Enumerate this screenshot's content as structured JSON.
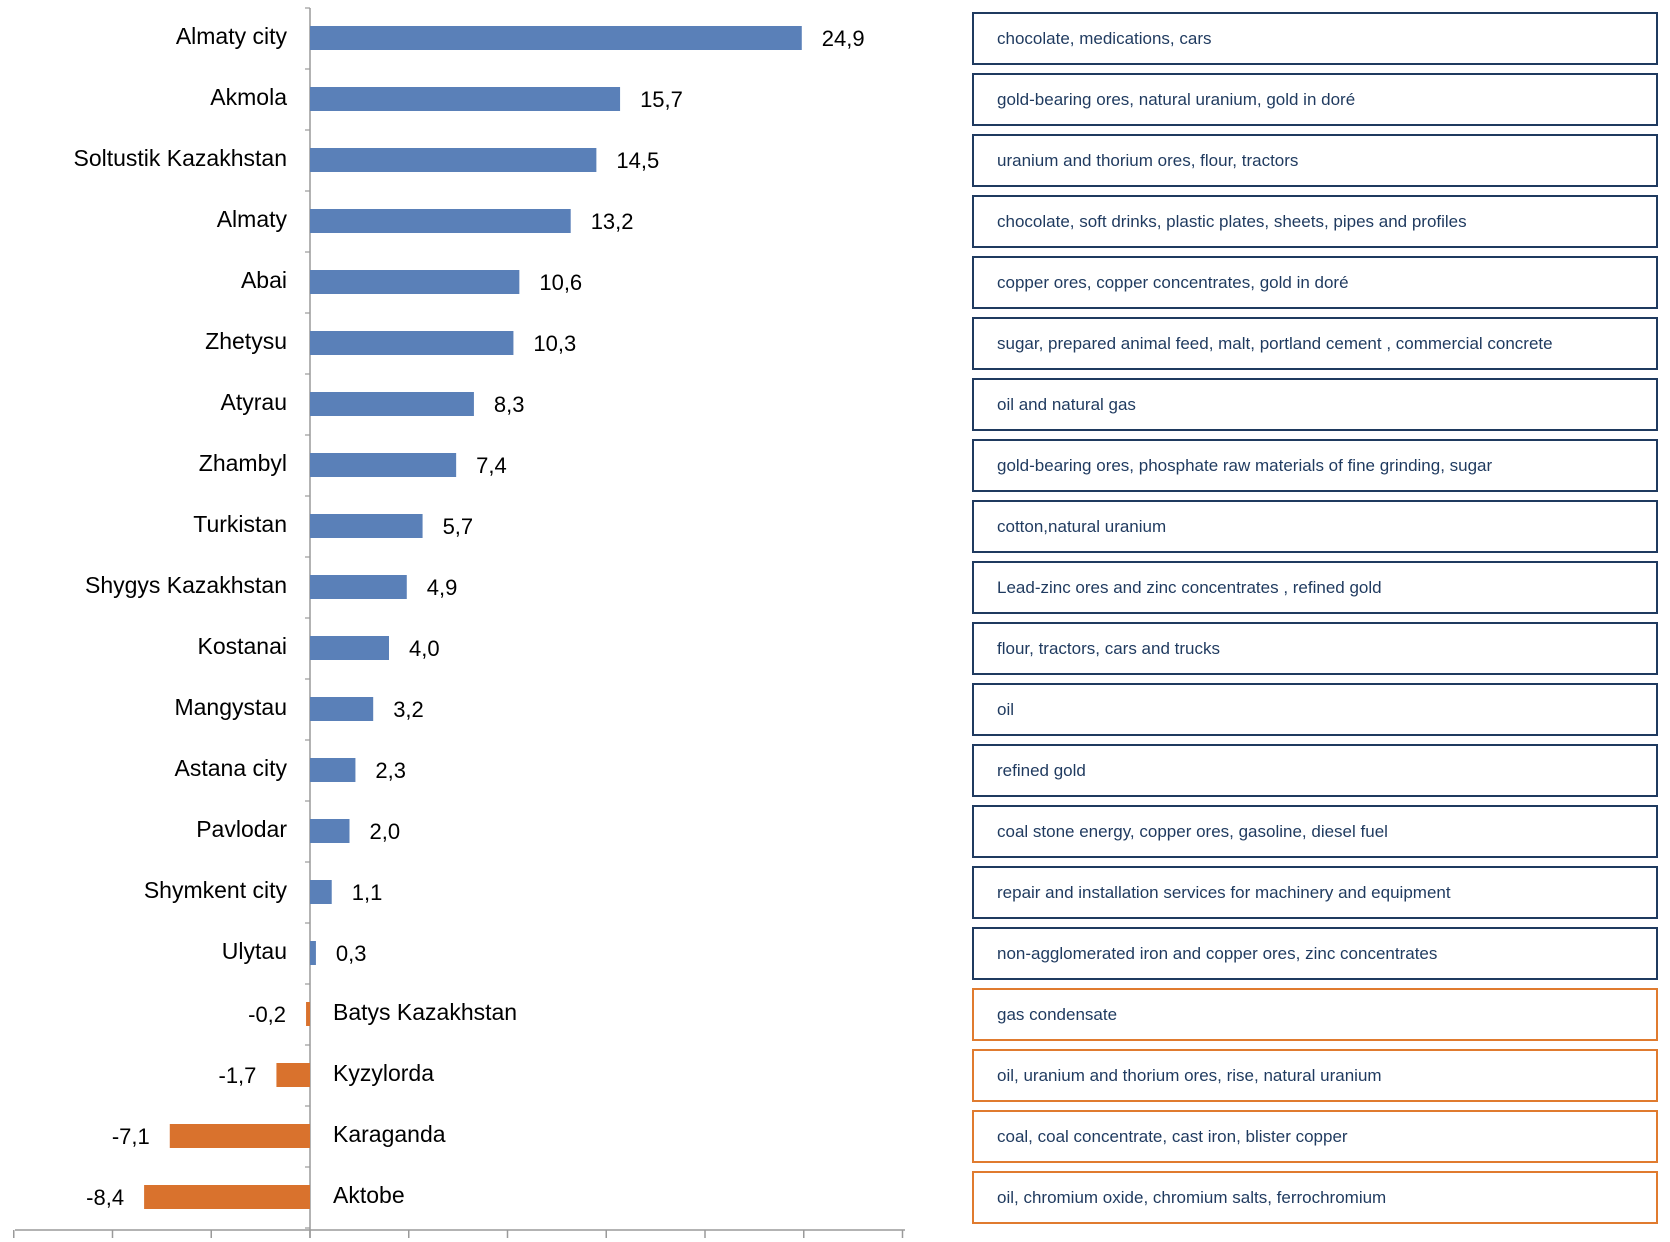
{
  "colors": {
    "positive": "#5a80b8",
    "negative": "#d9722d",
    "box_border_positive": "#1f3a5f",
    "box_border_negative": "#e07b2f",
    "axis": "#9a9a9a"
  },
  "chart_data": {
    "type": "bar",
    "orientation": "horizontal",
    "categories": [
      "Almaty city",
      "Akmola",
      "Soltustik Kazakhstan",
      "Almaty",
      "Abai",
      "Zhetysu",
      "Atyrau",
      "Zhambyl",
      "Turkistan",
      "Shygys Kazakhstan",
      "Kostanai",
      "Mangystau",
      "Astana city",
      "Pavlodar",
      "Shymkent city",
      "Ulytau",
      "Batys Kazakhstan",
      "Kyzylorda",
      "Karaganda",
      "Aktobe"
    ],
    "values": [
      24.9,
      15.7,
      14.5,
      13.2,
      10.6,
      10.3,
      8.3,
      7.4,
      5.7,
      4.9,
      4.0,
      3.2,
      2.3,
      2.0,
      1.1,
      0.3,
      -0.2,
      -1.7,
      -7.1,
      -8.4
    ],
    "value_labels": [
      "24,9",
      "15,7",
      "14,5",
      "13,2",
      "10,6",
      "10,3",
      "8,3",
      "7,4",
      "5,7",
      "4,9",
      "4,0",
      "3,2",
      "2,3",
      "2,0",
      "1,1",
      "0,3",
      "-0,2",
      "-1,7",
      "-7,1",
      "-8,4"
    ],
    "xlim": [
      -15,
      30
    ],
    "grid": false,
    "legend": "none"
  },
  "products": [
    "chocolate, medications, cars",
    "gold-bearing ores, natural uranium, gold in doré",
    "uranium and thorium ores, flour, tractors",
    "chocolate, soft drinks,  plastic plates, sheets, pipes and profiles",
    "copper ores, copper concentrates, gold in doré",
    "sugar, prepared animal feed, malt, portland cement , commercial concrete",
    "oil and natural gas",
    "gold-bearing ores, phosphate raw materials of fine grinding, sugar",
    "cotton,natural uranium",
    "Lead-zinc ores and  zinc concentrates , refined gold",
    "flour, tractors, cars and trucks",
    "oil",
    "refined gold",
    "coal stone energy, copper ores, gasoline, diesel fuel",
    "repair and installation services for machinery and equipment",
    "non-agglomerated iron and copper ores, zinc concentrates",
    "gas condensate",
    "oil, uranium and thorium ores, rise, natural uranium",
    "coal, coal concentrate, cast iron, blister copper",
    "oil, chromium oxide, chromium  salts, ferrochromium"
  ]
}
